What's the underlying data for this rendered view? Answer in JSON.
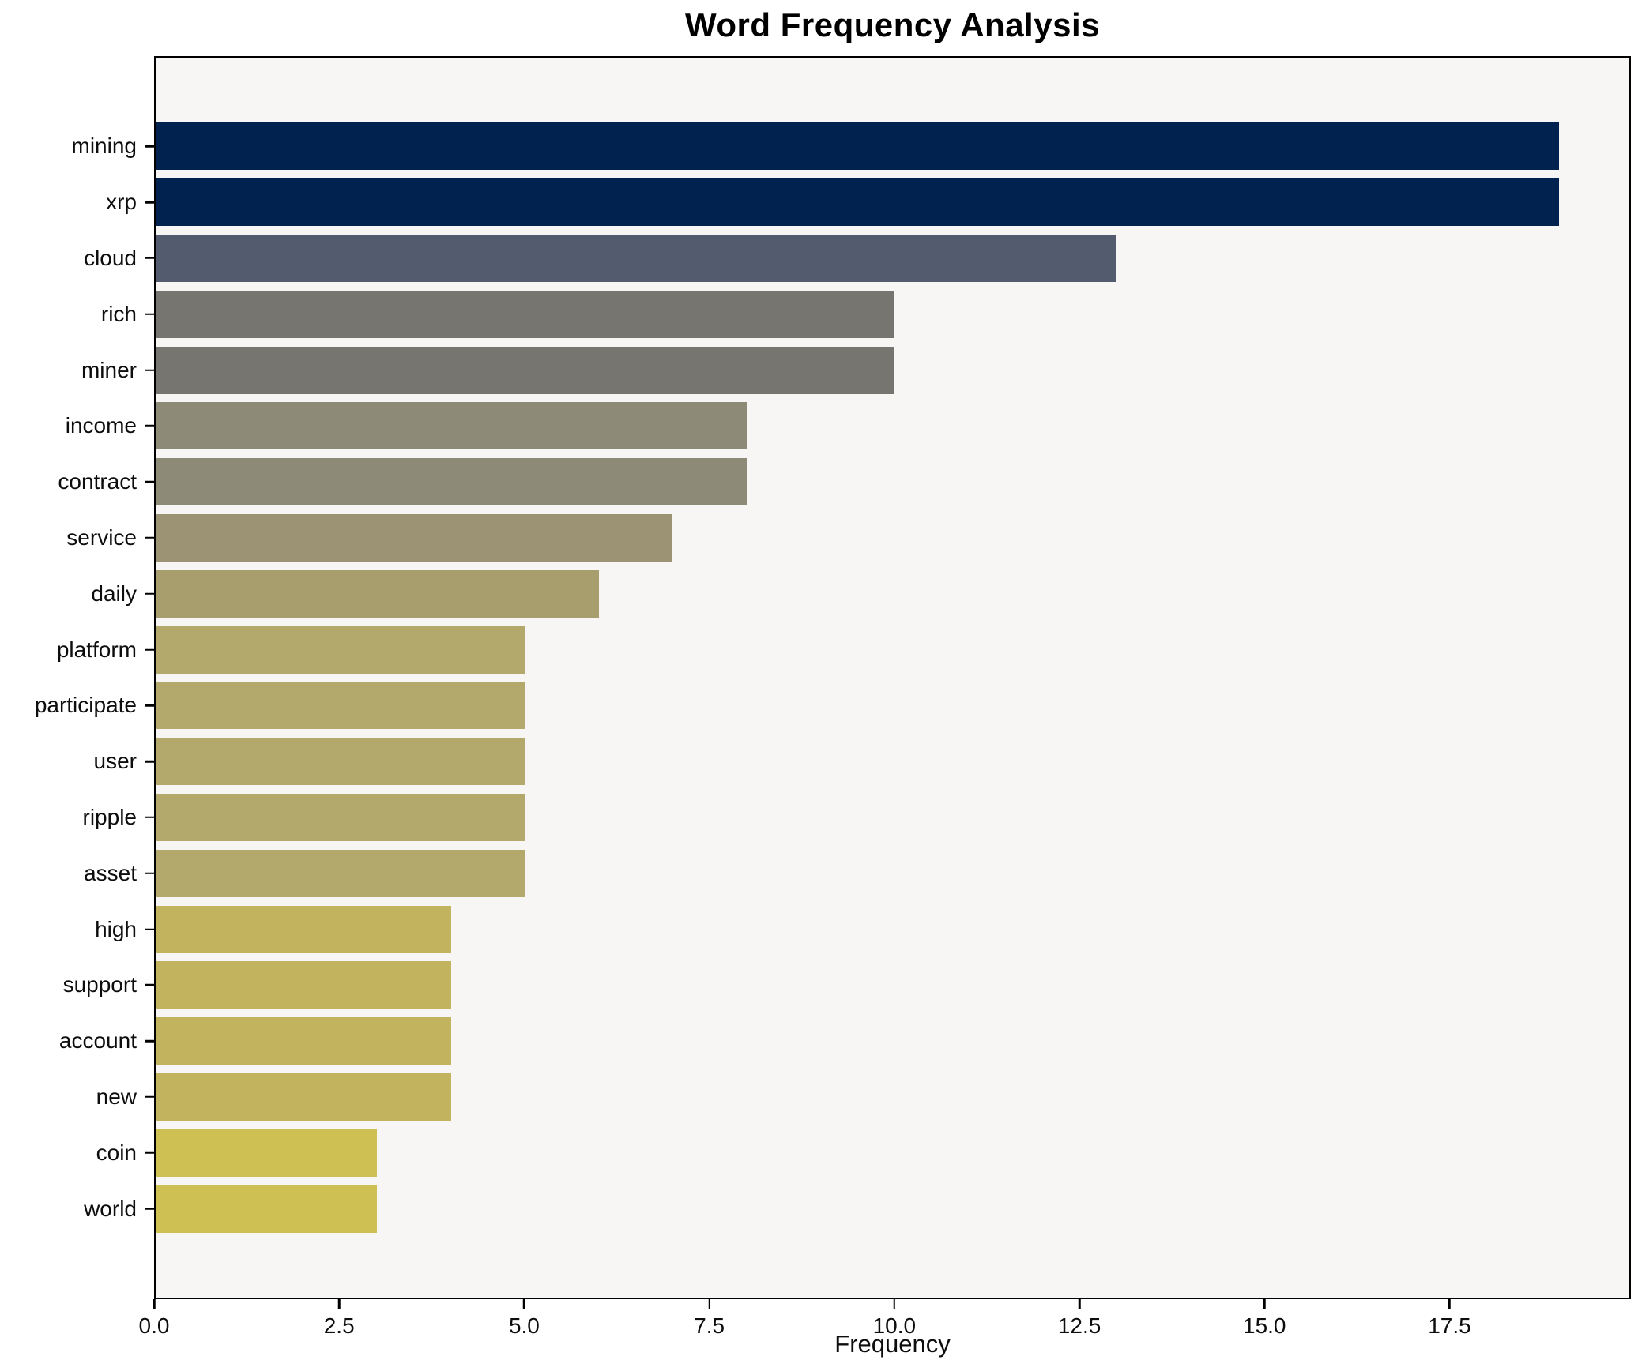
{
  "title": "Word Frequency Analysis",
  "chart_data": {
    "type": "bar",
    "orientation": "horizontal",
    "title": "Word Frequency Analysis",
    "xlabel": "Frequency",
    "ylabel": "",
    "categories": [
      "mining",
      "xrp",
      "cloud",
      "rich",
      "miner",
      "income",
      "contract",
      "service",
      "daily",
      "platform",
      "participate",
      "user",
      "ripple",
      "asset",
      "high",
      "support",
      "account",
      "new",
      "coin",
      "world"
    ],
    "values": [
      19,
      19,
      13,
      10,
      10,
      8,
      8,
      7,
      6,
      5,
      5,
      5,
      5,
      5,
      4,
      4,
      4,
      4,
      3,
      3
    ],
    "bar_colors": [
      "#01224e",
      "#01224e",
      "#535b6e",
      "#767570",
      "#767570",
      "#8e8a78",
      "#8e8a78",
      "#9b9373",
      "#a89d6d",
      "#b3a96c",
      "#b3a96c",
      "#b3a96c",
      "#b3a96c",
      "#b3a96c",
      "#c2b45f",
      "#c2b45f",
      "#c2b45f",
      "#c2b45f",
      "#cfc053",
      "#cfc053"
    ],
    "xlim": [
      0,
      19.95
    ],
    "x_tick_labels": [
      "0.0",
      "2.5",
      "5.0",
      "7.5",
      "10.0",
      "12.5",
      "15.0",
      "17.5"
    ],
    "x_tick_values": [
      0,
      2.5,
      5,
      7.5,
      10,
      12.5,
      15,
      17.5
    ],
    "grid": "off",
    "legend": "none",
    "plot_background": "#f7f6f4",
    "figure_background": "#ffffff",
    "accent_dark": "#01224e",
    "accent_light": "#cfc053"
  }
}
